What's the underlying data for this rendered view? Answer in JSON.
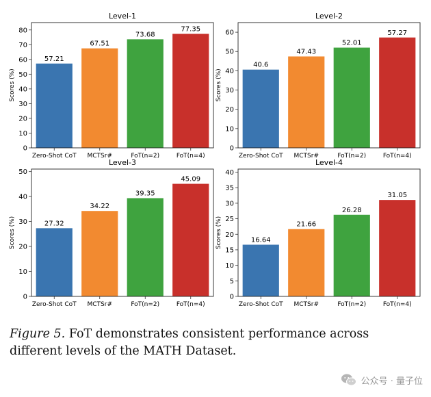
{
  "chart_data": [
    {
      "type": "bar",
      "title": "Level-1",
      "categories": [
        "Zero-Shot CoT",
        "MCTSr#",
        "FoT(n=2)",
        "FoT(n=4)"
      ],
      "values": [
        57.21,
        67.51,
        73.68,
        77.35
      ],
      "value_labels": [
        "57.21",
        "67.51",
        "73.68",
        "77.35"
      ],
      "ylabel": "Scores (%)",
      "ylim": [
        0,
        85
      ],
      "yticks": [
        0,
        10,
        20,
        30,
        40,
        50,
        60,
        70,
        80
      ],
      "colors": [
        "#3a75b0",
        "#f28a30",
        "#3fa33f",
        "#c8302b"
      ]
    },
    {
      "type": "bar",
      "title": "Level-2",
      "categories": [
        "Zero-Shot CoT",
        "MCTSr#",
        "FoT(n=2)",
        "FoT(n=4)"
      ],
      "values": [
        40.6,
        47.43,
        52.01,
        57.27
      ],
      "value_labels": [
        "40.6",
        "47.43",
        "52.01",
        "57.27"
      ],
      "ylabel": "Scores (%)",
      "ylim": [
        0,
        65
      ],
      "yticks": [
        0,
        10,
        20,
        30,
        40,
        50,
        60
      ],
      "colors": [
        "#3a75b0",
        "#f28a30",
        "#3fa33f",
        "#c8302b"
      ]
    },
    {
      "type": "bar",
      "title": "Level-3",
      "categories": [
        "Zero-Shot CoT",
        "MCTSr#",
        "FoT(n=2)",
        "FoT(n=4)"
      ],
      "values": [
        27.32,
        34.22,
        39.35,
        45.09
      ],
      "value_labels": [
        "27.32",
        "34.22",
        "39.35",
        "45.09"
      ],
      "ylabel": "Scores (%)",
      "ylim": [
        0,
        51
      ],
      "yticks": [
        0,
        10,
        20,
        30,
        40,
        50
      ],
      "colors": [
        "#3a75b0",
        "#f28a30",
        "#3fa33f",
        "#c8302b"
      ]
    },
    {
      "type": "bar",
      "title": "Level-4",
      "categories": [
        "Zero-Shot CoT",
        "MCTSr#",
        "FoT(n=2)",
        "FoT(n=4)"
      ],
      "values": [
        16.64,
        21.66,
        26.28,
        31.05
      ],
      "value_labels": [
        "16.64",
        "21.66",
        "26.28",
        "31.05"
      ],
      "ylabel": "Scores (%)",
      "ylim": [
        0,
        41
      ],
      "yticks": [
        0,
        5,
        10,
        15,
        20,
        25,
        30,
        35,
        40
      ],
      "colors": [
        "#3a75b0",
        "#f28a30",
        "#3fa33f",
        "#c8302b"
      ]
    }
  ],
  "caption": {
    "label": "Figure 5.",
    "text": " FoT demonstrates consistent performance across different levels of the MATH Dataset."
  },
  "watermark": {
    "text": "公众号 · 量子位",
    "icon": "wechat-icon",
    "color": "#9a9a9a"
  }
}
